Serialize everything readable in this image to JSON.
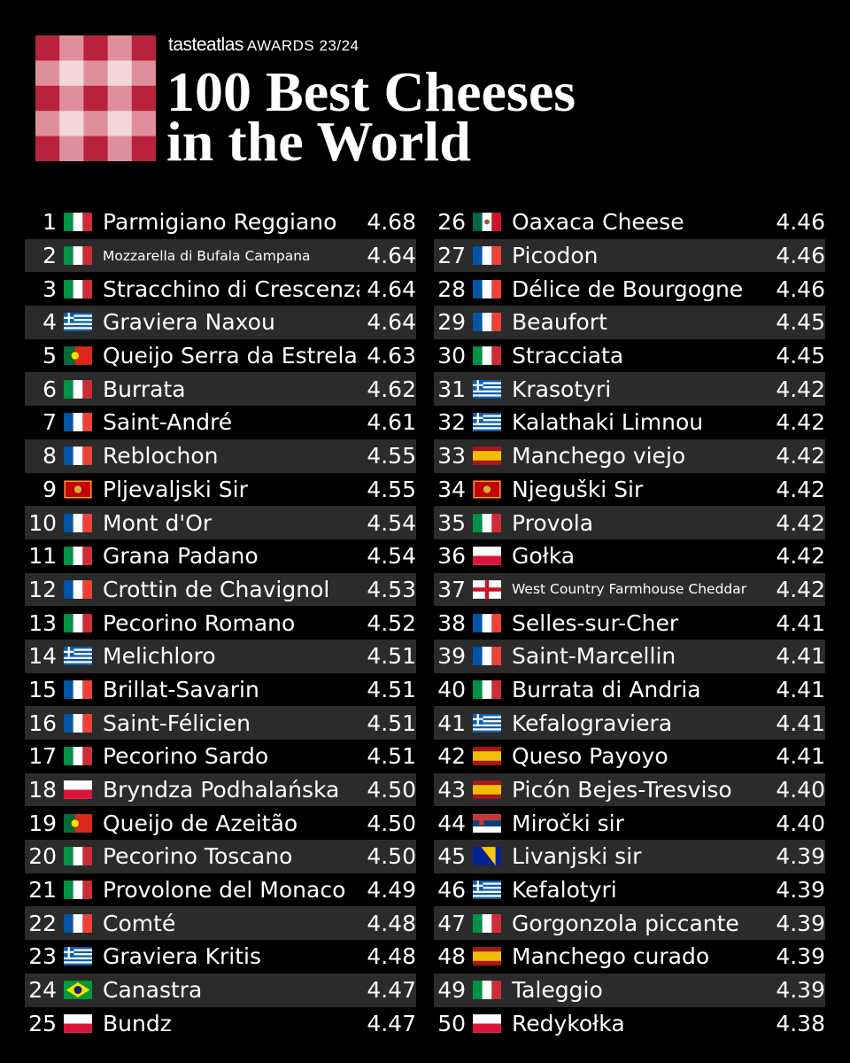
{
  "header": {
    "brand": "tasteatlas",
    "awards": "AWARDS 23/24",
    "title_line1": "100 Best Cheeses",
    "title_line2": "in the World"
  },
  "columns": [
    {
      "rows": [
        {
          "rank": 1,
          "flag": "it",
          "name": "Parmigiano Reggiano",
          "rating": "4.68"
        },
        {
          "rank": 2,
          "flag": "it",
          "name": "Mozzarella di Bufala Campana",
          "rating": "4.64"
        },
        {
          "rank": 3,
          "flag": "it",
          "name": "Stracchino di Crescenza",
          "rating": "4.64"
        },
        {
          "rank": 4,
          "flag": "gr",
          "name": "Graviera Naxou",
          "rating": "4.64"
        },
        {
          "rank": 5,
          "flag": "pt",
          "name": "Queijo Serra da Estrela",
          "rating": "4.63"
        },
        {
          "rank": 6,
          "flag": "it",
          "name": "Burrata",
          "rating": "4.62"
        },
        {
          "rank": 7,
          "flag": "fr",
          "name": "Saint-André",
          "rating": "4.61"
        },
        {
          "rank": 8,
          "flag": "fr",
          "name": "Reblochon",
          "rating": "4.55"
        },
        {
          "rank": 9,
          "flag": "me",
          "name": "Pljevaljski Sir",
          "rating": "4.55"
        },
        {
          "rank": 10,
          "flag": "fr",
          "name": "Mont d'Or",
          "rating": "4.54"
        },
        {
          "rank": 11,
          "flag": "it",
          "name": "Grana Padano",
          "rating": "4.54"
        },
        {
          "rank": 12,
          "flag": "fr",
          "name": "Crottin de Chavignol",
          "rating": "4.53"
        },
        {
          "rank": 13,
          "flag": "it",
          "name": "Pecorino Romano",
          "rating": "4.52"
        },
        {
          "rank": 14,
          "flag": "gr",
          "name": "Melichloro",
          "rating": "4.51"
        },
        {
          "rank": 15,
          "flag": "fr",
          "name": "Brillat-Savarin",
          "rating": "4.51"
        },
        {
          "rank": 16,
          "flag": "fr",
          "name": "Saint-Félicien",
          "rating": "4.51"
        },
        {
          "rank": 17,
          "flag": "it",
          "name": "Pecorino Sardo",
          "rating": "4.51"
        },
        {
          "rank": 18,
          "flag": "pl",
          "name": "Bryndza Podhalańska",
          "rating": "4.50"
        },
        {
          "rank": 19,
          "flag": "pt",
          "name": "Queijo de Azeitão",
          "rating": "4.50"
        },
        {
          "rank": 20,
          "flag": "it",
          "name": "Pecorino Toscano",
          "rating": "4.50"
        },
        {
          "rank": 21,
          "flag": "it",
          "name": "Provolone del Monaco",
          "rating": "4.49"
        },
        {
          "rank": 22,
          "flag": "fr",
          "name": "Comté",
          "rating": "4.48"
        },
        {
          "rank": 23,
          "flag": "gr",
          "name": "Graviera Kritis",
          "rating": "4.48"
        },
        {
          "rank": 24,
          "flag": "br",
          "name": "Canastra",
          "rating": "4.47"
        },
        {
          "rank": 25,
          "flag": "pl",
          "name": "Bundz",
          "rating": "4.47"
        }
      ]
    },
    {
      "rows": [
        {
          "rank": 26,
          "flag": "mx",
          "name": "Oaxaca Cheese",
          "rating": "4.46"
        },
        {
          "rank": 27,
          "flag": "fr",
          "name": "Picodon",
          "rating": "4.46"
        },
        {
          "rank": 28,
          "flag": "fr",
          "name": "Délice de Bourgogne",
          "rating": "4.46"
        },
        {
          "rank": 29,
          "flag": "fr",
          "name": "Beaufort",
          "rating": "4.45"
        },
        {
          "rank": 30,
          "flag": "it",
          "name": "Stracciata",
          "rating": "4.45"
        },
        {
          "rank": 31,
          "flag": "gr",
          "name": "Krasotyri",
          "rating": "4.42"
        },
        {
          "rank": 32,
          "flag": "gr",
          "name": "Kalathaki Limnou",
          "rating": "4.42"
        },
        {
          "rank": 33,
          "flag": "es",
          "name": "Manchego viejo",
          "rating": "4.42"
        },
        {
          "rank": 34,
          "flag": "me",
          "name": "Njeguški Sir",
          "rating": "4.42"
        },
        {
          "rank": 35,
          "flag": "it",
          "name": "Provola",
          "rating": "4.42"
        },
        {
          "rank": 36,
          "flag": "pl",
          "name": "Gołka",
          "rating": "4.42"
        },
        {
          "rank": 37,
          "flag": "en",
          "name": "West Country Farmhouse Cheddar",
          "rating": "4.42"
        },
        {
          "rank": 38,
          "flag": "fr",
          "name": "Selles-sur-Cher",
          "rating": "4.41"
        },
        {
          "rank": 39,
          "flag": "fr",
          "name": "Saint-Marcellin",
          "rating": "4.41"
        },
        {
          "rank": 40,
          "flag": "it",
          "name": "Burrata di Andria",
          "rating": "4.41"
        },
        {
          "rank": 41,
          "flag": "gr",
          "name": "Kefalograviera",
          "rating": "4.41"
        },
        {
          "rank": 42,
          "flag": "es",
          "name": "Queso Payoyo",
          "rating": "4.41"
        },
        {
          "rank": 43,
          "flag": "es",
          "name": "Picón Bejes-Tresviso",
          "rating": "4.40"
        },
        {
          "rank": 44,
          "flag": "rs",
          "name": "Miročki sir",
          "rating": "4.40"
        },
        {
          "rank": 45,
          "flag": "ba",
          "name": "Livanjski sir",
          "rating": "4.39"
        },
        {
          "rank": 46,
          "flag": "gr",
          "name": "Kefalotyri",
          "rating": "4.39"
        },
        {
          "rank": 47,
          "flag": "it",
          "name": "Gorgonzola piccante",
          "rating": "4.39"
        },
        {
          "rank": 48,
          "flag": "es",
          "name": "Manchego curado",
          "rating": "4.39"
        },
        {
          "rank": 49,
          "flag": "it",
          "name": "Taleggio",
          "rating": "4.39"
        },
        {
          "rank": 50,
          "flag": "pl",
          "name": "Redykołka",
          "rating": "4.38"
        }
      ]
    }
  ]
}
